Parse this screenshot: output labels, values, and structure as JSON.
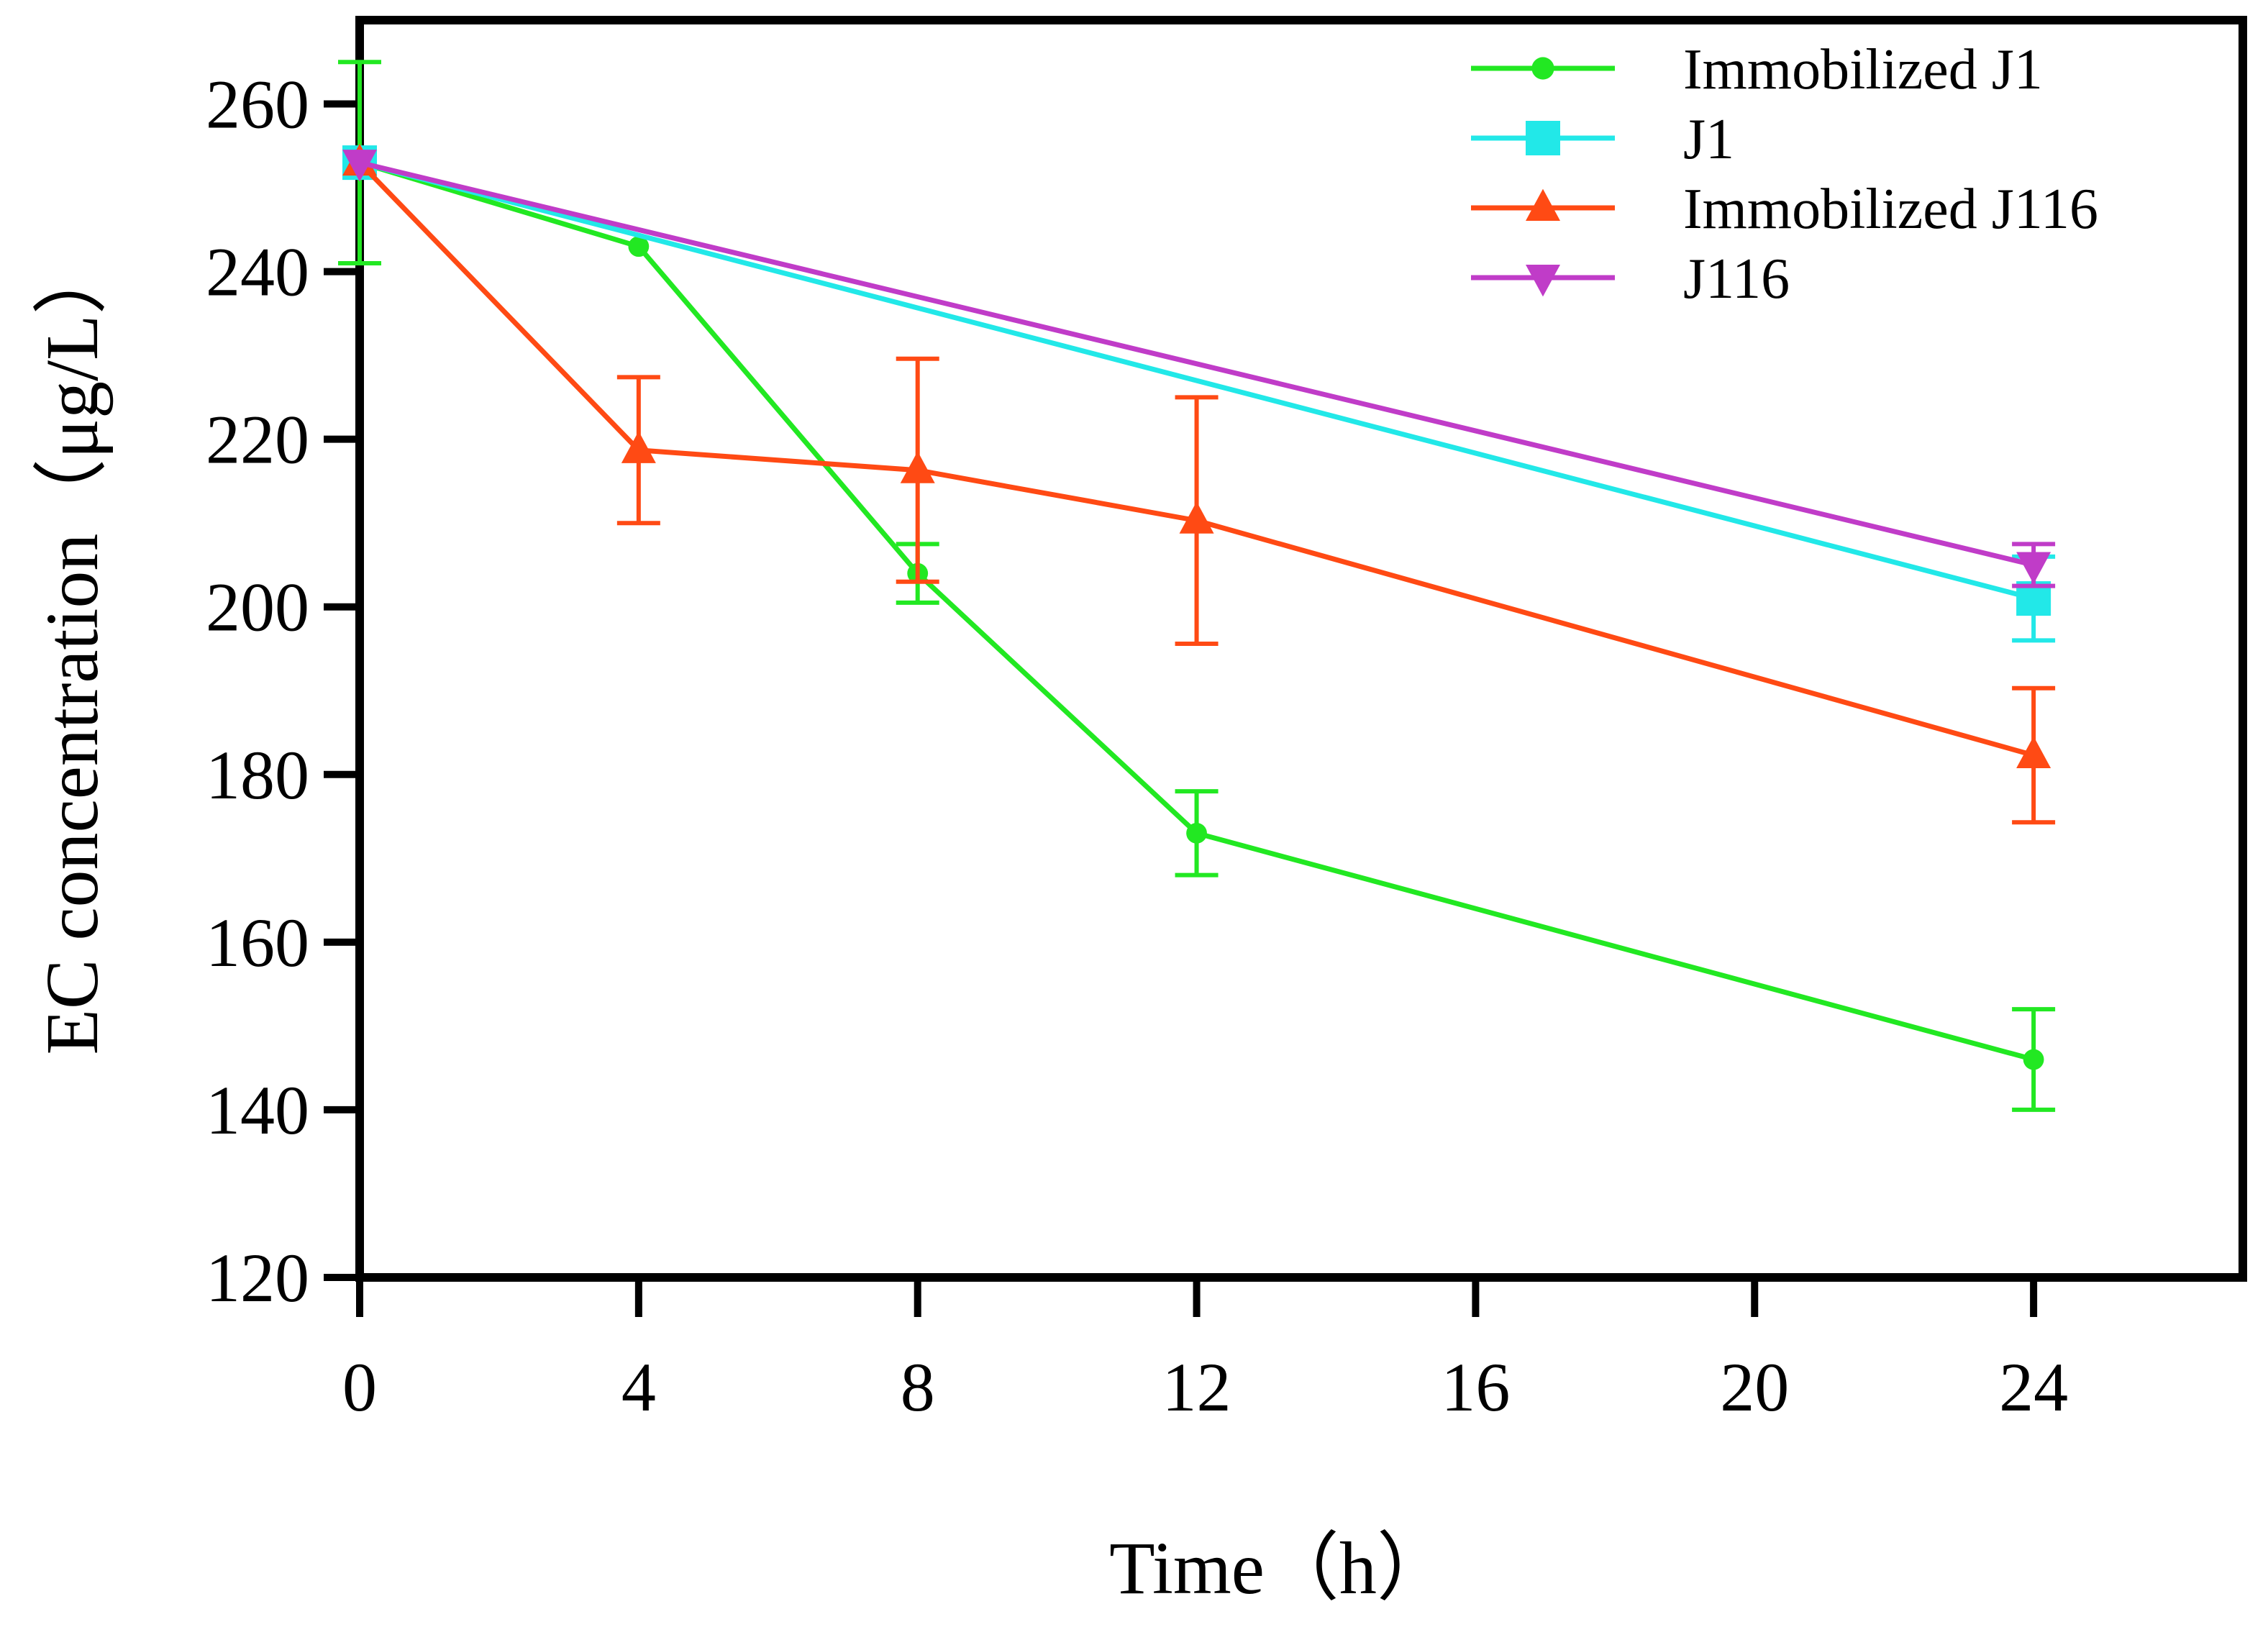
{
  "chart_data": {
    "type": "line",
    "title": "",
    "xlabel": "Time（h）",
    "ylabel": "EC concentration（μg/L）",
    "xlim": [
      0,
      27
    ],
    "ylim": [
      120,
      270
    ],
    "xticks": [
      0,
      4,
      8,
      12,
      16,
      20,
      24
    ],
    "yticks": [
      120,
      140,
      160,
      180,
      200,
      220,
      240,
      260
    ],
    "grid": false,
    "legend_position": "top-right",
    "series": [
      {
        "name": "Immobilized J1",
        "color": "#22e822",
        "marker": "circle",
        "x": [
          0,
          4,
          8,
          12,
          24
        ],
        "y": [
          253,
          243,
          204,
          173,
          146
        ],
        "err": [
          12,
          0,
          3.5,
          5,
          6
        ]
      },
      {
        "name": "J1",
        "color": "#22e8e8",
        "marker": "square",
        "x": [
          0,
          24
        ],
        "y": [
          253,
          201
        ],
        "err": [
          0,
          5
        ]
      },
      {
        "name": "Immobilized J116",
        "color": "#ff4a14",
        "marker": "triangle-up",
        "x": [
          0,
          4,
          8,
          12,
          24
        ],
        "y": [
          253,
          218.7,
          216.3,
          210.3,
          182.3
        ],
        "err": [
          0,
          8.7,
          13.3,
          14.7,
          8
        ]
      },
      {
        "name": "J116",
        "color": "#c03cc8",
        "marker": "triangle-down",
        "x": [
          0,
          24
        ],
        "y": [
          253,
          205
        ],
        "err": [
          0,
          2.5
        ]
      }
    ]
  }
}
